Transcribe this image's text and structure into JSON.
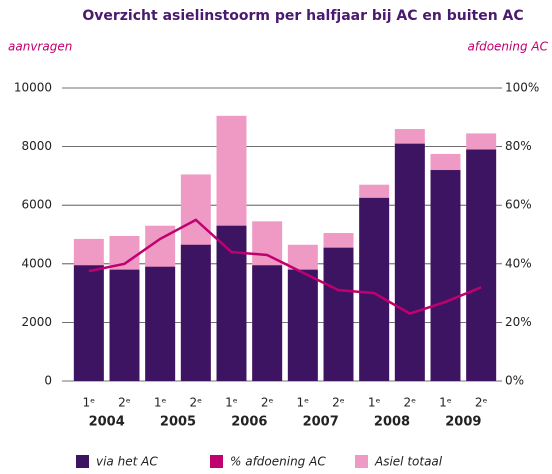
{
  "chart_data": {
    "type": "bar_line",
    "title": "Overzicht asielinstoorm per halfjaar bij AC en buiten AC",
    "y_label": "aanvragen",
    "y2_label": "afdoening AC",
    "categories": [
      "1ᵉ",
      "2ᵉ",
      "1ᵉ",
      "2ᵉ",
      "1ᵉ",
      "2ᵉ",
      "1ᵉ",
      "2ᵉ",
      "1ᵉ",
      "2ᵉ",
      "1ᵉ",
      "2ᵉ"
    ],
    "groups": [
      "2004",
      "2005",
      "2006",
      "2007",
      "2008",
      "2009"
    ],
    "bar_mode": "overlay",
    "series": [
      {
        "name": "via het AC",
        "type": "bar",
        "color": "#3d1462",
        "values": [
          3950,
          3800,
          3900,
          4650,
          5300,
          3950,
          3800,
          4550,
          6250,
          8100,
          7200,
          7900
        ]
      },
      {
        "name": "% afdoening AC",
        "type": "line",
        "axis": "y2",
        "color": "#c0006e",
        "values": [
          37.5,
          40,
          48.5,
          55,
          44,
          43,
          37,
          31,
          30,
          23,
          27,
          32
        ]
      },
      {
        "name": "Asiel totaal",
        "type": "bar",
        "color": "#ef9ac4",
        "values": [
          4850,
          4950,
          5300,
          7050,
          9050,
          5450,
          4650,
          5050,
          6700,
          8600,
          7750,
          8450
        ]
      }
    ],
    "ylim": [
      0,
      10000
    ],
    "yticks": [
      0,
      2000,
      4000,
      6000,
      8000,
      10000
    ],
    "y2lim": [
      0,
      100
    ],
    "y2ticks": [
      {
        "value": 0,
        "label": "0%"
      },
      {
        "value": 20,
        "label": "20%"
      },
      {
        "value": 40,
        "label": "40%"
      },
      {
        "value": 60,
        "label": "60%"
      },
      {
        "value": 80,
        "label": "80%"
      },
      {
        "value": 100,
        "label": "100%"
      }
    ],
    "grid": true,
    "legend": "bottom"
  }
}
